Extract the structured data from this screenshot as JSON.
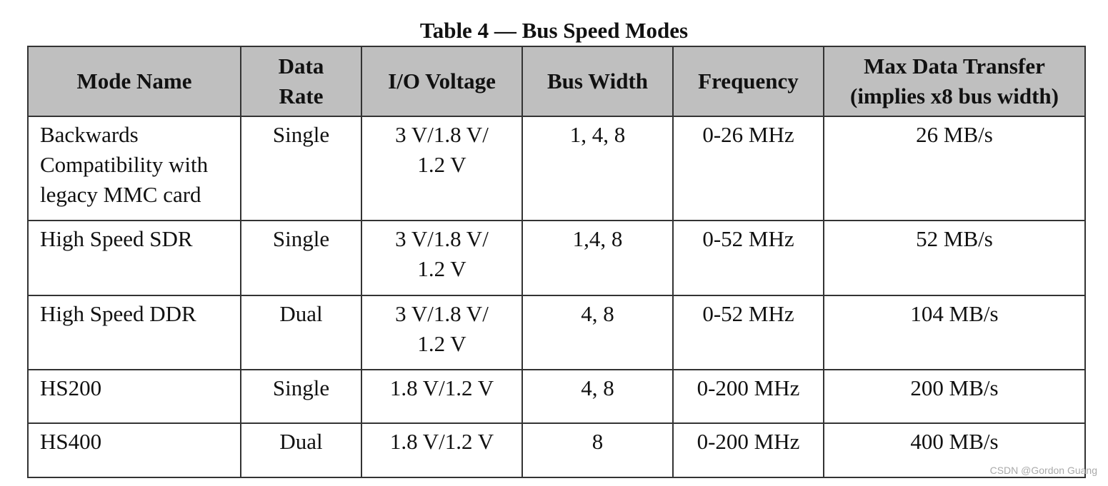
{
  "title": "Table 4 — Bus Speed Modes",
  "table": {
    "header": [
      "Mode Name",
      "Data\nRate",
      "I/O Voltage",
      "Bus Width",
      "Frequency",
      "Max Data Transfer\n(implies x8 bus width)"
    ],
    "rows": [
      [
        "Backwards\nCompatibility with\nlegacy MMC card",
        "Single",
        "3 V/1.8 V/\n1.2 V",
        "1, 4, 8",
        "0-26 MHz",
        "26 MB/s"
      ],
      [
        "High Speed SDR",
        "Single",
        "3 V/1.8 V/\n1.2 V",
        "1,4, 8",
        "0-52 MHz",
        "52 MB/s"
      ],
      [
        "High Speed DDR",
        "Dual",
        "3 V/1.8 V/\n1.2 V",
        "4, 8",
        "0-52 MHz",
        "104 MB/s"
      ],
      [
        "HS200",
        "Single",
        "1.8 V/1.2 V",
        "4, 8",
        "0-200 MHz",
        "200 MB/s"
      ],
      [
        "HS400",
        "Dual",
        "1.8 V/1.2 V",
        "8",
        "0-200 MHz",
        "400 MB/s"
      ]
    ]
  },
  "watermark": "CSDN @Gordon Guang"
}
